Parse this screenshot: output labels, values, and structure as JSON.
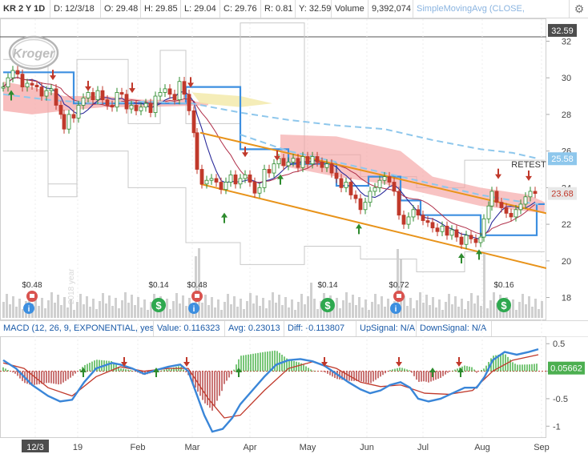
{
  "quote": {
    "symbol": "KR 2 Y 1D",
    "date": "D: 12/3/18",
    "open": "O: 29.48",
    "high": "H: 29.85",
    "low": "L: 29.04",
    "close": "C: 29.76",
    "range": "R: 0.81",
    "yval": "Y: 32.59",
    "volume_label": "Volume",
    "volume_value": "9,392,074",
    "sma": "SimpleMovingAvg (CLOSE,"
  },
  "macd_bar": {
    "study": "MACD (12, 26, 9, EXPONENTIAL, yes)",
    "value": "Value: 0.116323",
    "avg": "Avg: 0.23013",
    "diff": "Diff: -0.113807",
    "up": "UpSignal: N/A",
    "down": "DownSignal: N/A"
  },
  "logo_text": "Kroger",
  "watermark": "2018 year",
  "colors": {
    "up": "#2e8b2e",
    "down": "#c0392b",
    "channel": "#e8931a",
    "sma_dash": "#8ec7ec",
    "box": "#3d8fe0",
    "cloud_red": "#f5a3a3",
    "cloud_yellow": "#f3e9a6",
    "macd_line": "#3a86d8",
    "signal": "#c0392b"
  },
  "chart_data": [
    {
      "type": "line",
      "title": "",
      "y_axis": {
        "ticks": [
          18,
          20,
          22,
          24,
          26,
          28,
          30,
          32
        ],
        "range": [
          16.8,
          33.2
        ],
        "side": "right"
      },
      "x_axis": {
        "labels": [
          "12/3",
          "19",
          "Feb",
          "Mar",
          "Apr",
          "May",
          "Jun",
          "Jul",
          "Aug",
          "Sep"
        ]
      },
      "price_tags": [
        {
          "text": "32.59",
          "value": 32.59,
          "color": "#4d4d4d"
        },
        {
          "text": "25.58",
          "value": 25.58,
          "color": "#8ec7ec"
        },
        {
          "text": "23.68",
          "value": 23.68,
          "color": "#e8e8e8"
        }
      ],
      "annotation": "RETEST",
      "dividends": [
        {
          "label": "$0.48",
          "icon": "earnings-icon",
          "icon2": "info-icon",
          "x": 40
        },
        {
          "label": "$0.14",
          "icon": "dividend-icon",
          "x": 198
        },
        {
          "label": "$0.48",
          "icon": "earnings-icon",
          "icon2": "info-icon",
          "x": 246
        },
        {
          "label": "$0.14",
          "icon": "dividend-icon",
          "x": 409
        },
        {
          "label": "$0.72",
          "icon": "earnings-icon",
          "icon2": "info-icon",
          "x": 498
        },
        {
          "label": "$0.16",
          "icon": "dividend-icon",
          "x": 629
        }
      ],
      "series": [
        {
          "name": "",
          "points": [
            [
              4,
              29.5
            ],
            [
              10,
              30
            ],
            [
              16,
              30.4
            ],
            [
              22,
              30.2
            ],
            [
              28,
              29.5
            ],
            [
              34,
              29.7
            ],
            [
              40,
              29.6
            ],
            [
              46,
              29.5
            ],
            [
              52,
              29
            ],
            [
              58,
              29.3
            ],
            [
              64,
              29.4
            ],
            [
              70,
              28.5
            ],
            [
              76,
              28
            ],
            [
              80,
              27.2
            ],
            [
              86,
              28
            ],
            [
              92,
              27.8
            ],
            [
              98,
              28.5
            ],
            [
              104,
              28.9
            ],
            [
              110,
              29.2
            ],
            [
              116,
              28.8
            ],
            [
              122,
              29.3
            ],
            [
              128,
              28.8
            ],
            [
              134,
              28.5
            ],
            [
              140,
              28.4
            ],
            [
              146,
              29.2
            ],
            [
              152,
              29.1
            ],
            [
              158,
              28.3
            ],
            [
              164,
              28.5
            ],
            [
              170,
              28.2
            ],
            [
              176,
              28.4
            ],
            [
              182,
              28.6
            ],
            [
              188,
              28.1
            ],
            [
              194,
              29
            ],
            [
              200,
              29.2
            ],
            [
              206,
              29.4
            ],
            [
              212,
              29.1
            ],
            [
              218,
              28.8
            ],
            [
              224,
              29.8
            ],
            [
              230,
              29.1
            ],
            [
              236,
              28.2
            ],
            [
              242,
              27
            ],
            [
              246,
              25
            ],
            [
              252,
              24.2
            ],
            [
              258,
              24.4
            ],
            [
              264,
              24.5
            ],
            [
              270,
              24.3
            ],
            [
              276,
              23.9
            ],
            [
              282,
              24.3
            ],
            [
              288,
              24.7
            ],
            [
              294,
              24.2
            ],
            [
              300,
              24.5
            ],
            [
              306,
              24.7
            ],
            [
              312,
              24.3
            ],
            [
              318,
              23.7
            ],
            [
              324,
              24
            ],
            [
              330,
              25
            ],
            [
              336,
              24.8
            ],
            [
              342,
              25.3
            ],
            [
              348,
              25.6
            ],
            [
              354,
              25.2
            ],
            [
              360,
              25.4
            ],
            [
              366,
              25.6
            ],
            [
              372,
              25.1
            ],
            [
              378,
              25.7
            ],
            [
              384,
              25.3
            ],
            [
              390,
              25.7
            ],
            [
              396,
              25.4
            ],
            [
              402,
              25.1
            ],
            [
              408,
              25.3
            ],
            [
              414,
              24.8
            ],
            [
              420,
              24.5
            ],
            [
              426,
              24
            ],
            [
              432,
              24.3
            ],
            [
              438,
              23.6
            ],
            [
              444,
              23.4
            ],
            [
              450,
              22.8
            ],
            [
              456,
              23.2
            ],
            [
              462,
              23.8
            ],
            [
              468,
              24
            ],
            [
              474,
              24.4
            ],
            [
              480,
              24.6
            ],
            [
              486,
              24.3
            ],
            [
              492,
              23.8
            ],
            [
              498,
              22.5
            ],
            [
              504,
              22
            ],
            [
              510,
              22.4
            ],
            [
              516,
              22.8
            ],
            [
              522,
              22.5
            ],
            [
              528,
              22.2
            ],
            [
              534,
              22.1
            ],
            [
              540,
              21.8
            ],
            [
              546,
              21.6
            ],
            [
              552,
              21.9
            ],
            [
              558,
              21.4
            ],
            [
              564,
              21.7
            ],
            [
              570,
              21.3
            ],
            [
              576,
              20.9
            ],
            [
              582,
              21.4
            ],
            [
              588,
              21.2
            ],
            [
              594,
              21
            ],
            [
              600,
              21.3
            ],
            [
              604,
              22.3
            ],
            [
              610,
              23
            ],
            [
              614,
              23.8
            ],
            [
              620,
              23.2
            ],
            [
              626,
              22.9
            ],
            [
              632,
              22.6
            ],
            [
              638,
              22.4
            ],
            [
              644,
              22.8
            ],
            [
              650,
              23.1
            ],
            [
              656,
              23.5
            ],
            [
              662,
              23.8
            ],
            [
              668,
              23.68
            ]
          ]
        },
        {
          "name": "",
          "style": "dashed",
          "points": [
            [
              4,
              29.1
            ],
            [
              60,
              28.8
            ],
            [
              120,
              28.6
            ],
            [
              180,
              28.7
            ],
            [
              240,
              28.6
            ],
            [
              300,
              28.1
            ],
            [
              360,
              27.7
            ],
            [
              420,
              27.4
            ],
            [
              480,
              27.2
            ],
            [
              540,
              26.6
            ],
            [
              600,
              26.1
            ],
            [
              640,
              25.9
            ],
            [
              672,
              25.58
            ]
          ]
        },
        {
          "name": "",
          "style": "dashed",
          "points": [
            [
              300,
              26.9
            ],
            [
              360,
              26
            ],
            [
              420,
              25.4
            ],
            [
              480,
              24.8
            ],
            [
              540,
              24.2
            ],
            [
              600,
              23.6
            ],
            [
              640,
              23.3
            ],
            [
              672,
              23.1
            ]
          ]
        },
        {
          "name": "",
          "points": [
            [
              250,
              27
            ],
            [
              330,
              25.8
            ],
            [
              400,
              25.1
            ],
            [
              470,
              24.6
            ],
            [
              540,
              23.8
            ],
            [
              620,
              23.1
            ],
            [
              682,
              22.6
            ]
          ]
        },
        {
          "name": "",
          "points": [
            [
              250,
              24.2
            ],
            [
              330,
              23.7
            ],
            [
              420,
              22.8
            ],
            [
              500,
              21.8
            ],
            [
              570,
              20.8
            ],
            [
              630,
              20.2
            ],
            [
              682,
              19.6
            ]
          ]
        }
      ]
    },
    {
      "type": "bar",
      "title": "",
      "y_axis": {
        "ticks": [
          0.5,
          0,
          -0.5,
          -1
        ],
        "range": [
          -1.2,
          0.62
        ],
        "side": "right"
      },
      "price_tags": [
        {
          "text": "0.05662",
          "value": 0.05662,
          "color": "#4caf50"
        }
      ],
      "series": [
        {
          "name": "",
          "points": [
            [
              4,
              0.2
            ],
            [
              20,
              0.05
            ],
            [
              40,
              -0.25
            ],
            [
              60,
              -0.45
            ],
            [
              75,
              -0.55
            ],
            [
              90,
              -0.52
            ],
            [
              105,
              -0.2
            ],
            [
              120,
              0.05
            ],
            [
              140,
              0.15
            ],
            [
              150,
              0.12
            ],
            [
              165,
              0.05
            ],
            [
              180,
              -0.05
            ],
            [
              195,
              0.02
            ],
            [
              210,
              0.08
            ],
            [
              225,
              0.12
            ],
            [
              235,
              0.0
            ],
            [
              245,
              -0.4
            ],
            [
              255,
              -0.8
            ],
            [
              265,
              -1.1
            ],
            [
              278,
              -1.05
            ],
            [
              290,
              -0.85
            ],
            [
              300,
              -0.6
            ],
            [
              315,
              -0.35
            ],
            [
              330,
              -0.1
            ],
            [
              345,
              0.12
            ],
            [
              360,
              0.2
            ],
            [
              375,
              0.22
            ],
            [
              390,
              0.18
            ],
            [
              405,
              0.1
            ],
            [
              420,
              -0.05
            ],
            [
              435,
              -0.2
            ],
            [
              450,
              -0.33
            ],
            [
              462,
              -0.4
            ],
            [
              475,
              -0.35
            ],
            [
              487,
              -0.25
            ],
            [
              500,
              -0.2
            ],
            [
              512,
              -0.3
            ],
            [
              522,
              -0.5
            ],
            [
              535,
              -0.55
            ],
            [
              550,
              -0.5
            ],
            [
              565,
              -0.4
            ],
            [
              580,
              -0.3
            ],
            [
              595,
              -0.3
            ],
            [
              605,
              -0.1
            ],
            [
              615,
              0.2
            ],
            [
              630,
              0.35
            ],
            [
              645,
              0.3
            ],
            [
              660,
              0.35
            ],
            [
              672,
              0.4
            ]
          ]
        },
        {
          "name": "",
          "points": [
            [
              4,
              0.15
            ],
            [
              30,
              0.05
            ],
            [
              60,
              -0.3
            ],
            [
              90,
              -0.45
            ],
            [
              120,
              -0.1
            ],
            [
              150,
              0.08
            ],
            [
              180,
              0.0
            ],
            [
              210,
              0.05
            ],
            [
              235,
              0.05
            ],
            [
              260,
              -0.5
            ],
            [
              280,
              -0.85
            ],
            [
              300,
              -0.8
            ],
            [
              330,
              -0.35
            ],
            [
              360,
              0.05
            ],
            [
              390,
              0.17
            ],
            [
              420,
              0.05
            ],
            [
              450,
              -0.2
            ],
            [
              475,
              -0.28
            ],
            [
              500,
              -0.25
            ],
            [
              530,
              -0.4
            ],
            [
              560,
              -0.42
            ],
            [
              590,
              -0.35
            ],
            [
              615,
              0.0
            ],
            [
              640,
              0.2
            ],
            [
              672,
              0.3
            ]
          ]
        }
      ],
      "histogram_hint": "green/red bars of macd minus signal"
    }
  ]
}
